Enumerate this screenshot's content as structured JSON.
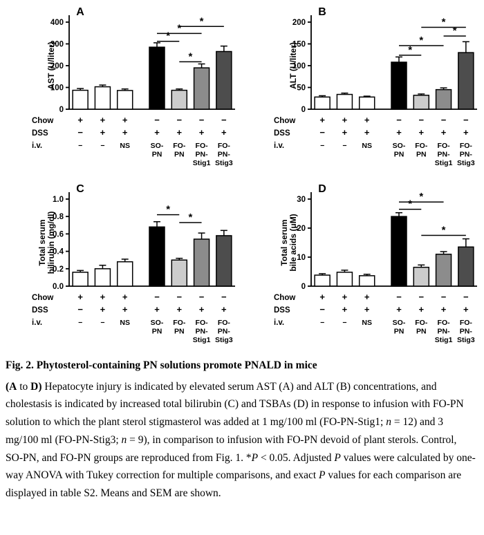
{
  "figure_label": "Fig. 2",
  "sig_symbol": "*",
  "bar_colors": [
    "#ffffff",
    "#ffffff",
    "#ffffff",
    "#000000",
    "#cccccc",
    "#8c8c8c",
    "#4d4d4d"
  ],
  "group_table": {
    "row_labels": [
      "Chow",
      "DSS",
      "i.v."
    ],
    "rows": {
      "chow": [
        "+",
        "+",
        "+",
        "−",
        "−",
        "−",
        "−"
      ],
      "dss": [
        "−",
        "+",
        "+",
        "+",
        "+",
        "+",
        "+"
      ],
      "iv": [
        [
          "−"
        ],
        [
          "−"
        ],
        [
          "NS"
        ],
        [
          "SO-",
          "PN"
        ],
        [
          "FO-",
          "PN"
        ],
        [
          "FO-",
          "PN-",
          "Stig1"
        ],
        [
          "FO-",
          "PN-",
          "Stig3"
        ]
      ]
    }
  },
  "chart_data": [
    {
      "panel": "A",
      "type": "bar",
      "ylabel_lines": [
        "AST (U/liter)"
      ],
      "ylim": [
        0,
        400
      ],
      "yticks": [
        {
          "v": 0,
          "label": "0"
        },
        {
          "v": 100,
          "label": "100"
        },
        {
          "v": 200,
          "label": "200"
        },
        {
          "v": 300,
          "label": "300"
        },
        {
          "v": 400,
          "label": "400"
        }
      ],
      "categories": [
        "Chow",
        "Chow+DSS",
        "Chow+DSS+NS",
        "SO-PN",
        "FO-PN",
        "FO-PN-Stig1",
        "FO-PN-Stig3"
      ],
      "values": [
        87,
        103,
        86,
        285,
        87,
        190,
        265
      ],
      "errors": [
        8,
        8,
        7,
        20,
        6,
        18,
        25
      ],
      "brackets": [
        {
          "i": 3,
          "j": 4,
          "y": 312,
          "label": "*"
        },
        {
          "i": 3,
          "j": 5,
          "y": 348,
          "label": "*"
        },
        {
          "i": 4,
          "j": 5,
          "y": 218,
          "label": "*"
        },
        {
          "i": 4,
          "j": 6,
          "y": 380,
          "label": "*"
        }
      ]
    },
    {
      "panel": "B",
      "type": "bar",
      "ylabel_lines": [
        "ALT (U/liter)"
      ],
      "ylim": [
        0,
        200
      ],
      "yticks": [
        {
          "v": 0,
          "label": "0"
        },
        {
          "v": 50,
          "label": "50"
        },
        {
          "v": 100,
          "label": "100"
        },
        {
          "v": 150,
          "label": "150"
        },
        {
          "v": 200,
          "label": "200"
        }
      ],
      "categories": [
        "Chow",
        "Chow+DSS",
        "Chow+DSS+NS",
        "SO-PN",
        "FO-PN",
        "FO-PN-Stig1",
        "FO-PN-Stig3"
      ],
      "values": [
        28,
        34,
        28,
        108,
        32,
        45,
        130
      ],
      "errors": [
        3,
        3,
        2,
        12,
        3,
        4,
        25
      ],
      "brackets": [
        {
          "i": 3,
          "j": 4,
          "y": 124,
          "label": "*"
        },
        {
          "i": 3,
          "j": 5,
          "y": 146,
          "label": "*"
        },
        {
          "i": 5,
          "j": 6,
          "y": 168,
          "label": "*"
        },
        {
          "i": 4,
          "j": 6,
          "y": 188,
          "label": "*"
        }
      ]
    },
    {
      "panel": "C",
      "type": "bar",
      "ylabel_lines": [
        "Total serum",
        "bilirubin (mg/dl)"
      ],
      "ylim": [
        0,
        1.0
      ],
      "yticks": [
        {
          "v": 0,
          "label": "0.0"
        },
        {
          "v": 0.2,
          "label": "0.2"
        },
        {
          "v": 0.4,
          "label": "0.4"
        },
        {
          "v": 0.6,
          "label": "0.6"
        },
        {
          "v": 0.8,
          "label": "0.8"
        },
        {
          "v": 1.0,
          "label": "1.0"
        }
      ],
      "categories": [
        "Chow",
        "Chow+DSS",
        "Chow+DSS+NS",
        "SO-PN",
        "FO-PN",
        "FO-PN-Stig1",
        "FO-PN-Stig3"
      ],
      "values": [
        0.16,
        0.2,
        0.28,
        0.68,
        0.3,
        0.54,
        0.58
      ],
      "errors": [
        0.02,
        0.04,
        0.03,
        0.06,
        0.02,
        0.07,
        0.06
      ],
      "brackets": [
        {
          "i": 3,
          "j": 4,
          "y": 0.82,
          "label": "*"
        },
        {
          "i": 4,
          "j": 5,
          "y": 0.73,
          "label": "*"
        }
      ]
    },
    {
      "panel": "D",
      "type": "bar",
      "ylabel_lines": [
        "Total serum",
        "bile acids (μM)"
      ],
      "ylim": [
        0,
        30
      ],
      "yticks": [
        {
          "v": 0,
          "label": "0"
        },
        {
          "v": 10,
          "label": "10"
        },
        {
          "v": 20,
          "label": "20"
        },
        {
          "v": 30,
          "label": "30"
        }
      ],
      "categories": [
        "Chow",
        "Chow+DSS",
        "Chow+DSS+NS",
        "SO-PN",
        "FO-PN",
        "FO-PN-Stig1",
        "FO-PN-Stig3"
      ],
      "values": [
        3.8,
        4.8,
        3.6,
        24,
        6.5,
        11,
        13.5
      ],
      "errors": [
        0.5,
        0.7,
        0.5,
        1.3,
        0.8,
        0.9,
        2.8
      ],
      "brackets": [
        {
          "i": 3,
          "j": 4,
          "y": 26.5,
          "label": "*"
        },
        {
          "i": 3,
          "j": 5,
          "y": 29,
          "label": "*"
        },
        {
          "i": 4,
          "j": 6,
          "y": 17.5,
          "label": "*"
        }
      ]
    }
  ],
  "caption": {
    "title": "Fig. 2. Phytosterol-containing PN solutions promote PNALD in mice",
    "body_segments": [
      {
        "t": "(A",
        "b": true
      },
      {
        "t": " to ",
        "b": false
      },
      {
        "t": "D)",
        "b": true
      },
      {
        "t": " Hepatocyte injury is indicated by elevated serum AST (A) and ALT (B) concentrations, and cholestasis is indicated by increased total bilirubin (C) and TSBAs (D) in response to infusion with FO-PN solution to which the plant sterol stigmasterol was added at 1 mg/100 ml (FO-PN-Stig1; "
      },
      {
        "t": "n",
        "i": true
      },
      {
        "t": " = 12) and 3 mg/100 ml (FO-PN-Stig3; "
      },
      {
        "t": "n",
        "i": true
      },
      {
        "t": " = 9), in comparison to infusion with FO-PN devoid of plant sterols. Control, SO-PN, and FO-PN groups are reproduced from Fig. 1. *"
      },
      {
        "t": "P",
        "i": true
      },
      {
        "t": " < 0.05. Adjusted "
      },
      {
        "t": "P",
        "i": true
      },
      {
        "t": " values were calculated by one-way ANOVA with Tukey correction for multiple comparisons, and exact "
      },
      {
        "t": "P",
        "i": true
      },
      {
        "t": " values for each comparison are displayed in table S2. Means and SEM are shown."
      }
    ]
  }
}
